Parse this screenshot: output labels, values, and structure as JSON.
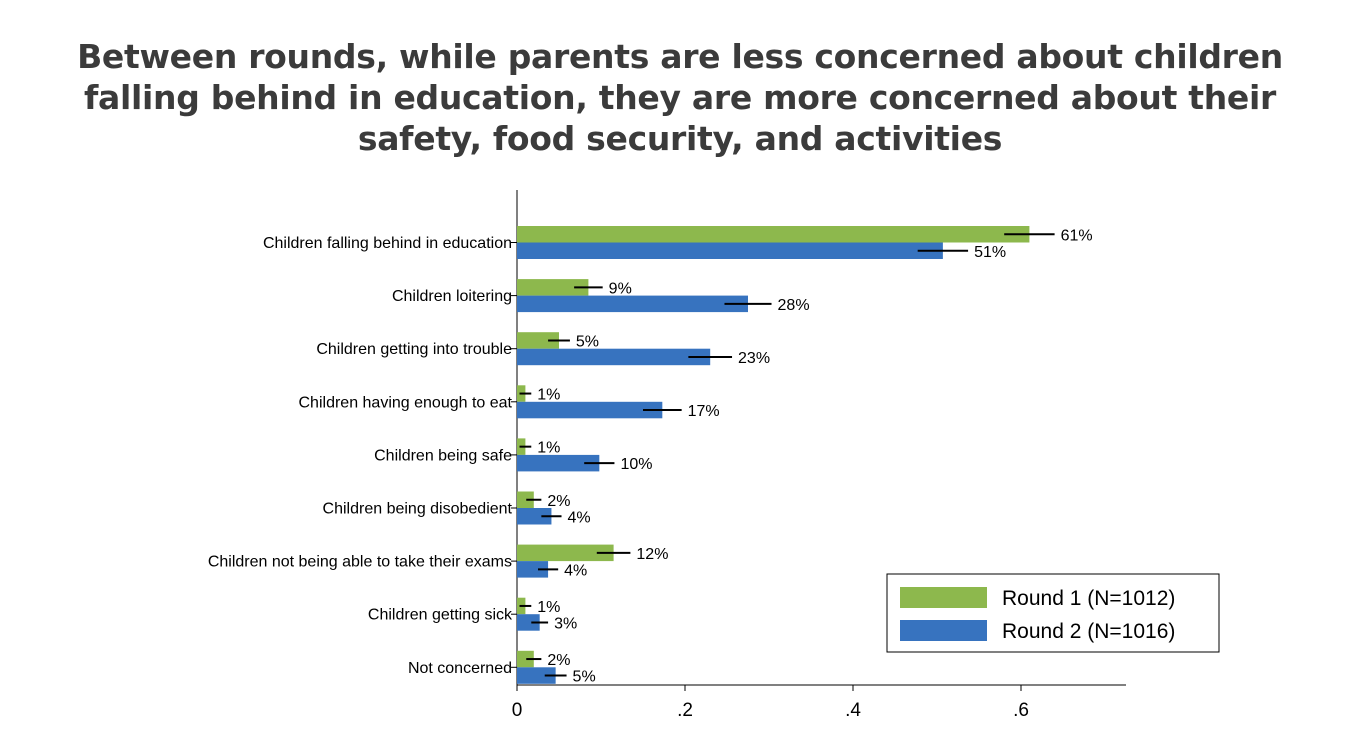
{
  "chart_data": {
    "type": "bar",
    "orientation": "horizontal",
    "title": "Between rounds, while parents are less concerned about children falling behind in education, they are more concerned about their safety, food security, and activities",
    "title_lines": [
      "Between rounds, while parents are less concerned about children",
      "falling behind in education, they are more concerned about their",
      "safety, food security, and activities"
    ],
    "categories": [
      "Children falling behind in education",
      "Children loitering",
      "Children getting into trouble",
      "Children having enough to eat",
      "Children being safe",
      "Children being disobedient",
      "Children not being able to take their exams",
      "Children getting sick",
      "Not concerned"
    ],
    "series": [
      {
        "name": "Round 1 (N=1012)",
        "color": "#8DB84D",
        "values": [
          0.61,
          0.085,
          0.05,
          0.01,
          0.01,
          0.02,
          0.115,
          0.01,
          0.02
        ],
        "ci_half": [
          0.03,
          0.017,
          0.013,
          0.007,
          0.007,
          0.009,
          0.02,
          0.007,
          0.009
        ],
        "labels": [
          "61%",
          "9%",
          "5%",
          "1%",
          "1%",
          "2%",
          "12%",
          "1%",
          "2%"
        ]
      },
      {
        "name": "Round 2 (N=1016)",
        "color": "#3773BF",
        "values": [
          0.507,
          0.275,
          0.23,
          0.173,
          0.098,
          0.041,
          0.037,
          0.027,
          0.046
        ],
        "ci_half": [
          0.03,
          0.028,
          0.026,
          0.023,
          0.018,
          0.012,
          0.012,
          0.01,
          0.013
        ],
        "labels": [
          "51%",
          "28%",
          "23%",
          "17%",
          "10%",
          "4%",
          "4%",
          "3%",
          "5%"
        ]
      }
    ],
    "x_ticks": [
      0,
      0.2,
      0.4,
      0.6
    ],
    "x_tick_labels": [
      "0",
      ".2",
      ".4",
      ".6"
    ],
    "xlim": [
      0,
      0.725
    ],
    "legend_position": "bottom-right",
    "grid": false
  }
}
